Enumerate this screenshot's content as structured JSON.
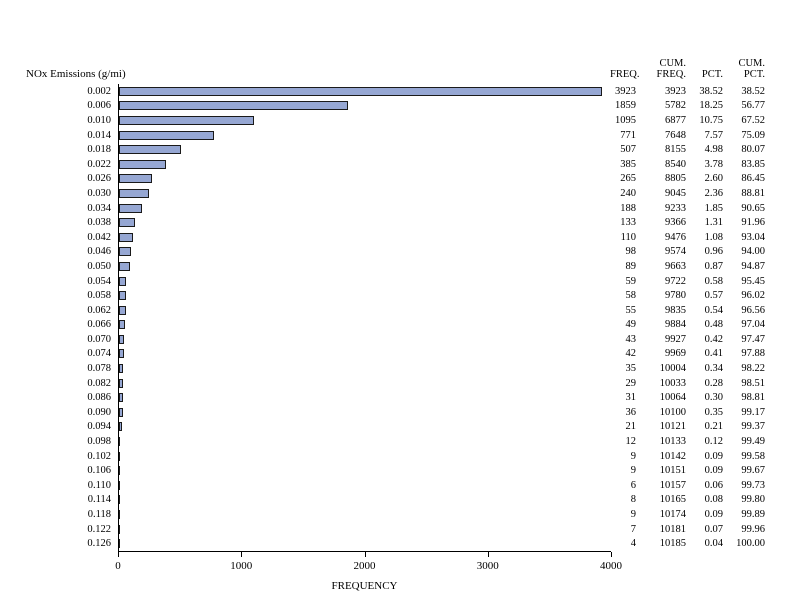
{
  "chart_data": {
    "type": "bar",
    "orientation": "horizontal",
    "ylabel": "NOx Emissions (g/mi)",
    "xlabel": "FREQUENCY",
    "xlim": [
      0,
      4000
    ],
    "x_ticks": [
      0,
      1000,
      2000,
      3000,
      4000
    ],
    "grid": false,
    "bar_color": "#96a7d3",
    "headers": {
      "freq": "FREQ.",
      "cum_freq": "CUM.\nFREQ.",
      "pct": "PCT.",
      "cum_pct": "CUM.\nPCT."
    },
    "categories": [
      "0.002",
      "0.006",
      "0.010",
      "0.014",
      "0.018",
      "0.022",
      "0.026",
      "0.030",
      "0.034",
      "0.038",
      "0.042",
      "0.046",
      "0.050",
      "0.054",
      "0.058",
      "0.062",
      "0.066",
      "0.070",
      "0.074",
      "0.078",
      "0.082",
      "0.086",
      "0.090",
      "0.094",
      "0.098",
      "0.102",
      "0.106",
      "0.110",
      "0.114",
      "0.118",
      "0.122",
      "0.126"
    ],
    "values": [
      3923,
      1859,
      1095,
      771,
      507,
      385,
      265,
      240,
      188,
      133,
      110,
      98,
      89,
      59,
      58,
      55,
      49,
      43,
      42,
      35,
      29,
      31,
      36,
      21,
      12,
      9,
      9,
      6,
      8,
      9,
      7,
      4
    ],
    "cum_freq": [
      3923,
      5782,
      6877,
      7648,
      8155,
      8540,
      8805,
      9045,
      9233,
      9366,
      9476,
      9574,
      9663,
      9722,
      9780,
      9835,
      9884,
      9927,
      9969,
      10004,
      10033,
      10064,
      10100,
      10121,
      10133,
      10142,
      10151,
      10157,
      10165,
      10174,
      10181,
      10185
    ],
    "pct": [
      "38.52",
      "18.25",
      "10.75",
      "7.57",
      "4.98",
      "3.78",
      "2.60",
      "2.36",
      "1.85",
      "1.31",
      "1.08",
      "0.96",
      "0.87",
      "0.58",
      "0.57",
      "0.54",
      "0.48",
      "0.42",
      "0.41",
      "0.34",
      "0.28",
      "0.30",
      "0.35",
      "0.21",
      "0.12",
      "0.09",
      "0.09",
      "0.06",
      "0.08",
      "0.09",
      "0.07",
      "0.04"
    ],
    "cum_pct": [
      "38.52",
      "56.77",
      "67.52",
      "75.09",
      "80.07",
      "83.85",
      "86.45",
      "88.81",
      "90.65",
      "91.96",
      "93.04",
      "94.00",
      "94.87",
      "95.45",
      "96.02",
      "96.56",
      "97.04",
      "97.47",
      "97.88",
      "98.22",
      "98.51",
      "98.81",
      "99.17",
      "99.37",
      "99.49",
      "99.58",
      "99.67",
      "99.73",
      "99.80",
      "99.89",
      "99.96",
      "100.00"
    ]
  }
}
